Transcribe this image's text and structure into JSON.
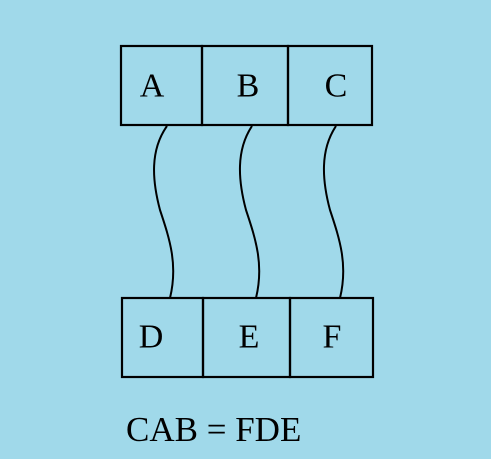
{
  "top_row": {
    "cells": [
      {
        "label": "A"
      },
      {
        "label": "B"
      },
      {
        "label": "C"
      }
    ]
  },
  "bottom_row": {
    "cells": [
      {
        "label": "D"
      },
      {
        "label": "E"
      },
      {
        "label": "F"
      }
    ]
  },
  "equation": "CAB = FDE",
  "colors": {
    "background": "#a0d9ea",
    "stroke": "#000000"
  }
}
